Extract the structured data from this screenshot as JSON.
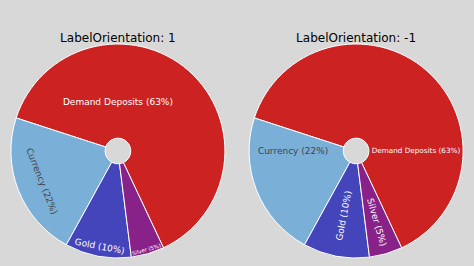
{
  "chart_data": [
    {
      "type": "pie",
      "title": "LabelOrientation: 1",
      "categories": [
        "Demand Deposits (63%)",
        "Currency (22%)",
        "Gold (10%)",
        "Silver (5%)"
      ],
      "values": [
        63,
        22,
        10,
        5
      ],
      "colors": [
        "#cc2222",
        "#7ab0d8",
        "#4444bb",
        "#882288"
      ]
    },
    {
      "type": "pie",
      "title": "LabelOrientation: -1",
      "categories": [
        "Demand Deposits (63%)",
        "Currency (22%)",
        "Gold (10%)",
        "Silver (5%)"
      ],
      "values": [
        63,
        22,
        10,
        5
      ],
      "colors": [
        "#cc2222",
        "#7ab0d8",
        "#4444bb",
        "#882288"
      ]
    }
  ]
}
